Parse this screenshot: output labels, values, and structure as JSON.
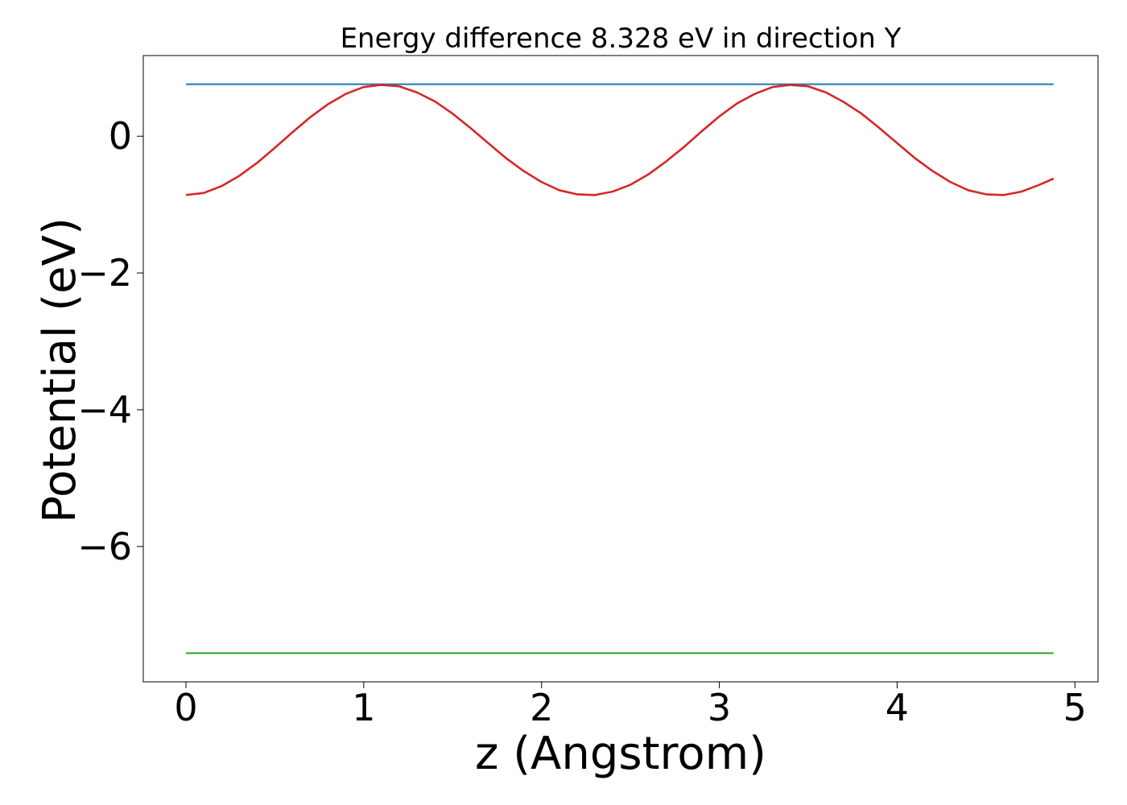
{
  "chart_data": {
    "type": "line",
    "title": "Energy difference 8.328 eV in direction Y",
    "xlabel": "z (Angstrom)",
    "ylabel": "Potential (eV)",
    "xlim": [
      -0.24,
      5.13
    ],
    "ylim": [
      -7.98,
      1.18
    ],
    "xticks": [
      0,
      1,
      2,
      3,
      4,
      5
    ],
    "xtick_labels": [
      "0",
      "1",
      "2",
      "3",
      "4",
      "5"
    ],
    "yticks": [
      0,
      -2,
      -4,
      -6
    ],
    "ytick_labels": [
      "0",
      "−2",
      "−4",
      "−6"
    ],
    "grid": false,
    "legend": false,
    "series": [
      {
        "color": "#1f77b4",
        "x": [
          0.0,
          4.88
        ],
        "y": [
          0.76,
          0.76
        ]
      },
      {
        "color": "#d62728",
        "x": [
          0.0,
          0.1,
          0.2,
          0.3,
          0.4,
          0.5,
          0.6,
          0.7,
          0.8,
          0.9,
          1.0,
          1.1,
          1.2,
          1.3,
          1.4,
          1.5,
          1.6,
          1.7,
          1.8,
          1.9,
          2.0,
          2.1,
          2.2,
          2.3,
          2.4,
          2.5,
          2.6,
          2.7,
          2.8,
          2.9,
          3.0,
          3.1,
          3.2,
          3.3,
          3.4,
          3.5,
          3.6,
          3.7,
          3.8,
          3.9,
          4.0,
          4.1,
          4.2,
          4.3,
          4.4,
          4.5,
          4.6,
          4.7,
          4.8,
          4.88
        ],
        "y": [
          -0.86,
          -0.83,
          -0.73,
          -0.58,
          -0.39,
          -0.17,
          0.06,
          0.28,
          0.47,
          0.62,
          0.72,
          0.75,
          0.73,
          0.64,
          0.51,
          0.33,
          0.12,
          -0.1,
          -0.32,
          -0.51,
          -0.67,
          -0.79,
          -0.85,
          -0.86,
          -0.81,
          -0.71,
          -0.56,
          -0.37,
          -0.16,
          0.07,
          0.29,
          0.48,
          0.62,
          0.72,
          0.75,
          0.73,
          0.64,
          0.5,
          0.33,
          0.12,
          -0.1,
          -0.32,
          -0.51,
          -0.67,
          -0.79,
          -0.85,
          -0.86,
          -0.81,
          -0.71,
          -0.62
        ]
      },
      {
        "color": "#2ca02c",
        "x": [
          0.0,
          4.88
        ],
        "y": [
          -7.56,
          -7.56
        ]
      }
    ]
  }
}
